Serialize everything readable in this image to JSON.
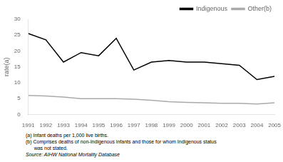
{
  "chart_data": {
    "type": "line",
    "x": [
      1991,
      1992,
      1993,
      1994,
      1995,
      1996,
      1997,
      1998,
      1999,
      2000,
      2001,
      2002,
      2003,
      2004,
      2005
    ],
    "series": [
      {
        "name": "Indigenous",
        "color": "#000000",
        "values": [
          25.5,
          23.5,
          16.5,
          19.5,
          18.5,
          24.0,
          14.0,
          16.5,
          17.0,
          16.5,
          16.5,
          16.0,
          15.5,
          11.0,
          12.0
        ]
      },
      {
        "name": "Other(b)",
        "color": "#aaaaaa",
        "values": [
          6.0,
          5.8,
          5.5,
          5.0,
          5.0,
          5.0,
          4.8,
          4.5,
          4.0,
          3.8,
          3.7,
          3.5,
          3.5,
          3.3,
          3.7
        ]
      }
    ],
    "ylabel": "rate(a)",
    "xlim": [
      1991,
      2005
    ],
    "xticks": [
      1991,
      1992,
      1993,
      1994,
      1995,
      1996,
      1997,
      1998,
      1999,
      2000,
      2001,
      2002,
      2003,
      2004,
      2005
    ],
    "ylim": [
      0,
      30
    ],
    "yticks": [
      0,
      5,
      10,
      15,
      20,
      25,
      30
    ],
    "grid": false,
    "legend": "upper right",
    "annotations": [
      "(a) Infant deaths per 1,000 live births.",
      "(b) Comprises deaths of non-Indigenous infants and those for whom Indigenous status",
      "      was not stated.",
      "Source: AIHW National Mortality Database"
    ]
  }
}
